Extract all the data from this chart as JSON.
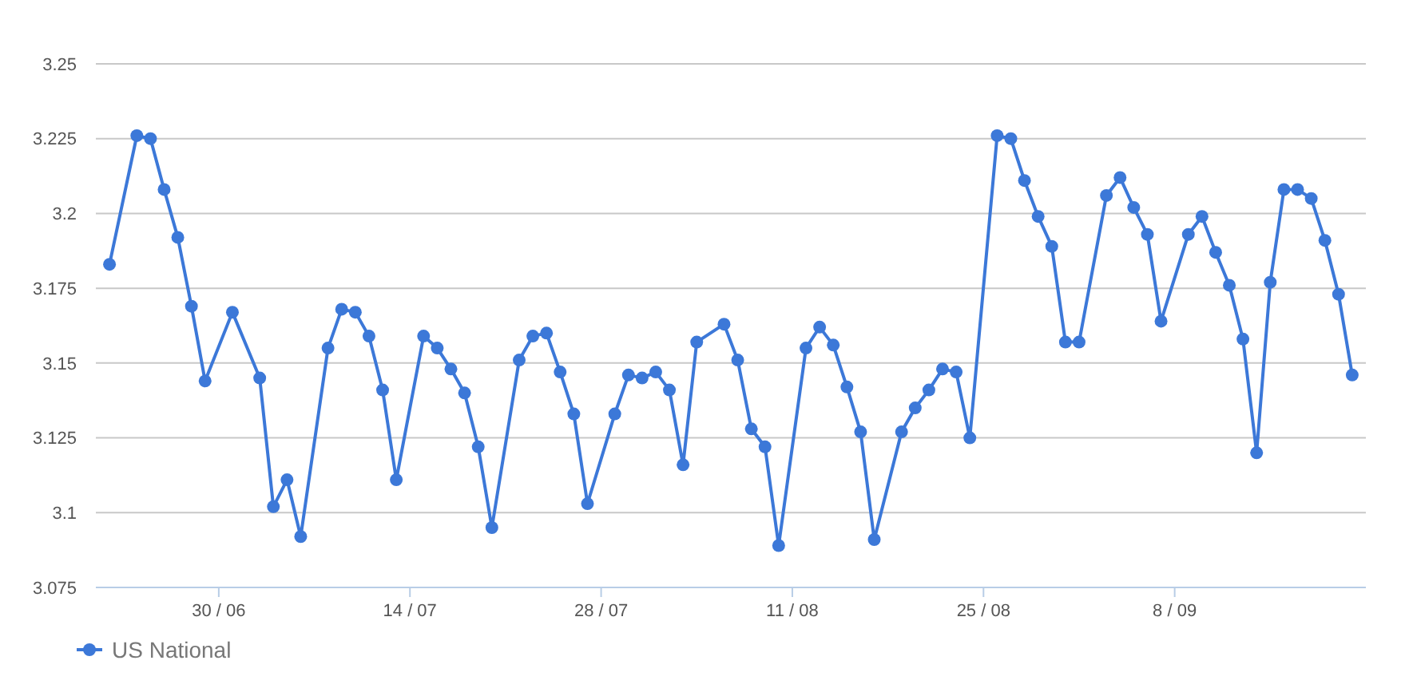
{
  "chart_data": {
    "type": "line",
    "x": [
      "--06-22",
      "--06-24",
      "--06-25",
      "--06-26",
      "--06-27",
      "--06-28",
      "--06-29",
      "--07-01",
      "--07-03",
      "--07-04",
      "--07-05",
      "--07-06",
      "--07-08",
      "--07-09",
      "--07-10",
      "--07-11",
      "--07-12",
      "--07-13",
      "--07-15",
      "--07-16",
      "--07-17",
      "--07-18",
      "--07-19",
      "--07-20",
      "--07-22",
      "--07-23",
      "--07-24",
      "--07-25",
      "--07-26",
      "--07-27",
      "--07-29",
      "--07-30",
      "--07-31",
      "--08-01",
      "--08-02",
      "--08-03",
      "--08-04",
      "--08-06",
      "--08-07",
      "--08-08",
      "--08-09",
      "--08-10",
      "--08-12",
      "--08-13",
      "--08-14",
      "--08-15",
      "--08-16",
      "--08-17",
      "--08-19",
      "--08-20",
      "--08-21",
      "--08-22",
      "--08-23",
      "--08-24",
      "--08-26",
      "--08-27",
      "--08-28",
      "--08-29",
      "--08-30",
      "--08-31",
      "--09-01",
      "--09-03",
      "--09-04",
      "--09-05",
      "--09-06",
      "--09-07",
      "--09-09",
      "--09-10",
      "--09-11",
      "--09-12",
      "--09-13",
      "--09-14",
      "--09-15",
      "--09-16",
      "--09-17",
      "--09-18",
      "--09-19",
      "--09-20",
      "--09-21"
    ],
    "series": [
      {
        "name": "US National",
        "color": "#3c78d8",
        "values": [
          3.183,
          3.226,
          3.225,
          3.208,
          3.192,
          3.169,
          3.144,
          3.167,
          3.145,
          3.102,
          3.111,
          3.092,
          3.155,
          3.168,
          3.167,
          3.159,
          3.141,
          3.111,
          3.159,
          3.155,
          3.148,
          3.14,
          3.122,
          3.095,
          3.151,
          3.159,
          3.16,
          3.147,
          3.133,
          3.103,
          3.133,
          3.146,
          3.145,
          3.147,
          3.141,
          3.116,
          3.157,
          3.163,
          3.151,
          3.128,
          3.122,
          3.089,
          3.155,
          3.162,
          3.156,
          3.142,
          3.127,
          3.091,
          3.127,
          3.135,
          3.141,
          3.148,
          3.147,
          3.125,
          3.226,
          3.225,
          3.211,
          3.199,
          3.189,
          3.157,
          3.157,
          3.206,
          3.212,
          3.202,
          3.193,
          3.164,
          3.193,
          3.199,
          3.187,
          3.176,
          3.158,
          3.12,
          3.177,
          3.208,
          3.208,
          3.205,
          3.191,
          3.173,
          3.146
        ]
      }
    ],
    "xlim": [
      "--06-21",
      "--09-22"
    ],
    "xticks": [
      {
        "value": "--06-30",
        "label": "30 / 06"
      },
      {
        "value": "--07-14",
        "label": "14 / 07"
      },
      {
        "value": "--07-28",
        "label": "28 / 07"
      },
      {
        "value": "--08-11",
        "label": "11 / 08"
      },
      {
        "value": "--08-25",
        "label": "25 / 08"
      },
      {
        "value": "--09-08",
        "label": "8 / 09"
      }
    ],
    "ylim": [
      3.075,
      3.25
    ],
    "yticks": [
      3.075,
      3.1,
      3.125,
      3.15,
      3.175,
      3.2,
      3.225,
      3.25
    ],
    "grid": "y",
    "legend": "bottom left",
    "marker": "circle",
    "line_style": "solid"
  }
}
